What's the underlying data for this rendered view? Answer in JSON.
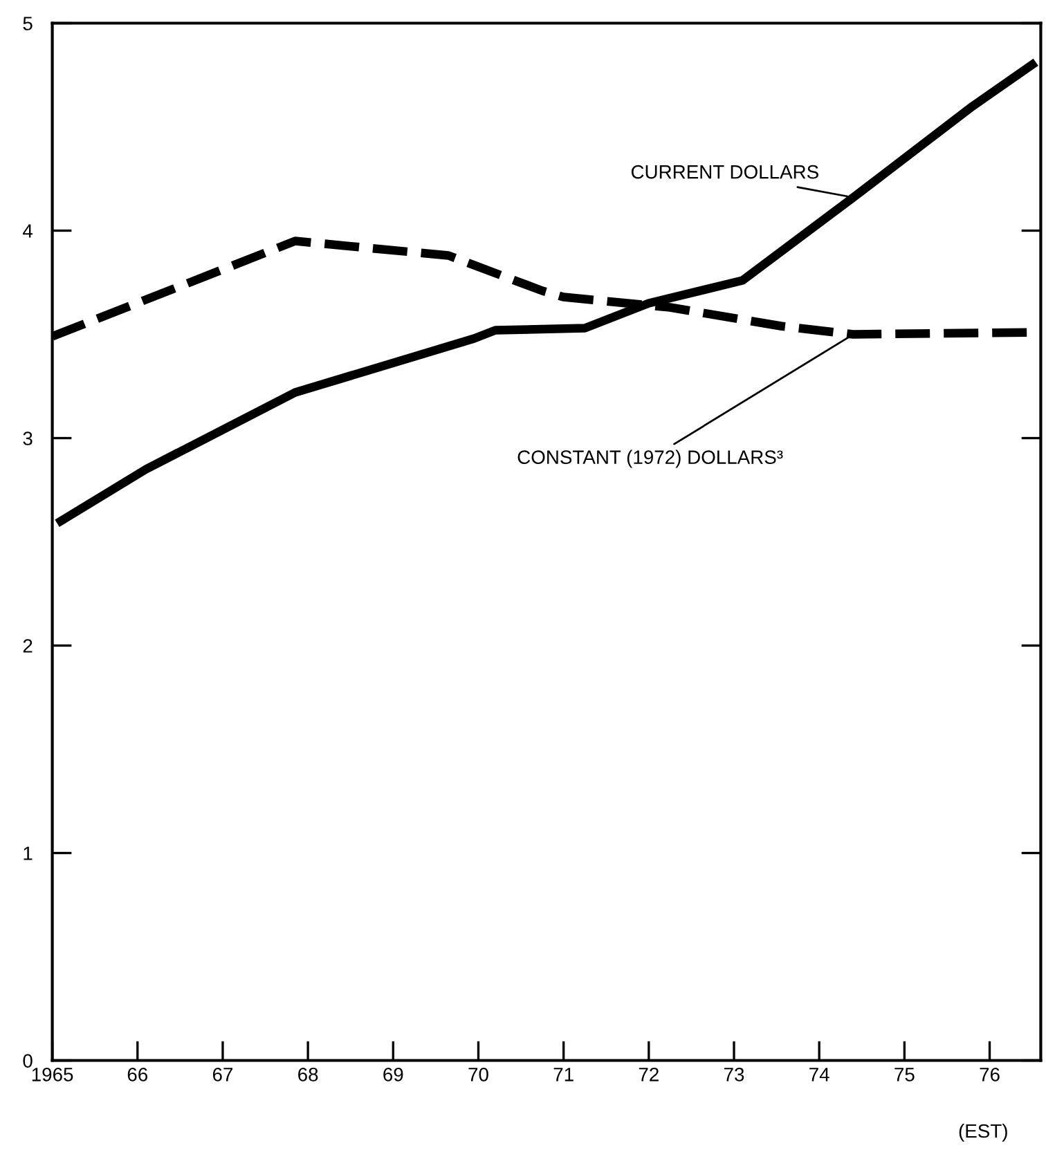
{
  "chart_data": {
    "type": "line",
    "series": [
      {
        "name": "CURRENT DOLLARS",
        "color": "#000000",
        "line_style": "solid",
        "x": [
          1965.1,
          1966.1,
          1967.85,
          1969.95,
          1970.2,
          1971.25,
          1972.0,
          1973.1,
          1974.4,
          1975.8,
          1976.5
        ],
        "values": [
          2.6,
          2.85,
          3.22,
          3.48,
          3.52,
          3.53,
          3.65,
          3.76,
          4.16,
          4.6,
          4.8
        ]
      },
      {
        "name": "CONSTANT (1972) DOLLARS³",
        "color": "#000000",
        "line_style": "dashed",
        "x": [
          1965.0,
          1967.85,
          1969.65,
          1970.75,
          1971.0,
          1972.25,
          1973.55,
          1974.4,
          1976.55
        ],
        "values": [
          3.49,
          3.95,
          3.88,
          3.71,
          3.68,
          3.63,
          3.54,
          3.5,
          3.51
        ]
      }
    ],
    "xlim": [
      1965,
      1976.6
    ],
    "ylim": [
      0,
      5
    ],
    "xticks": [
      1965,
      {
        "value": 1966,
        "label": "66"
      },
      {
        "value": 1967,
        "label": "67"
      },
      {
        "value": 1968,
        "label": "68"
      },
      {
        "value": 1969,
        "label": "69"
      },
      {
        "value": 1970,
        "label": "70"
      },
      {
        "value": 1971,
        "label": "71"
      },
      {
        "value": 1972,
        "label": "72"
      },
      {
        "value": 1973,
        "label": "73"
      },
      {
        "value": 1974,
        "label": "74"
      },
      {
        "value": 1975,
        "label": "75"
      },
      {
        "value": 1976,
        "label": "76"
      }
    ],
    "yticks": [
      0,
      1,
      2,
      3,
      4,
      5
    ],
    "annotations": [
      "(EST)"
    ],
    "grid": false,
    "legend": false,
    "marker": "none"
  }
}
